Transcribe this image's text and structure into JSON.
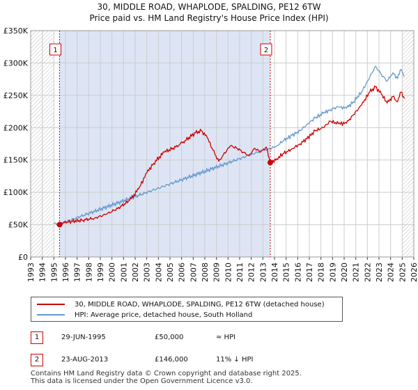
{
  "title": {
    "line1": "30, MIDDLE ROAD, WHAPLODE, SPALDING, PE12 6TW",
    "line2": "Price paid vs. HM Land Registry's House Price Index (HPI)"
  },
  "colors": {
    "property": "#cc0000",
    "hpi": "#6699cc",
    "shade": "#dde5f5",
    "grid": "#cccccc"
  },
  "chart_data": {
    "type": "line",
    "xlim": [
      1993,
      2026
    ],
    "ylim": [
      0,
      350000
    ],
    "y_ticks": [
      {
        "value": 0,
        "label": "£0"
      },
      {
        "value": 50000,
        "label": "£50K"
      },
      {
        "value": 100000,
        "label": "£100K"
      },
      {
        "value": 150000,
        "label": "£150K"
      },
      {
        "value": 200000,
        "label": "£200K"
      },
      {
        "value": 250000,
        "label": "£250K"
      },
      {
        "value": 300000,
        "label": "£300K"
      },
      {
        "value": 350000,
        "label": "£350K"
      }
    ],
    "x_ticks": [
      "1993",
      "1994",
      "1995",
      "1996",
      "1997",
      "1998",
      "1999",
      "2000",
      "2001",
      "2002",
      "2003",
      "2004",
      "2005",
      "2006",
      "2007",
      "2008",
      "2009",
      "2010",
      "2011",
      "2012",
      "2013",
      "2014",
      "2015",
      "2016",
      "2017",
      "2018",
      "2019",
      "2020",
      "2021",
      "2022",
      "2023",
      "2024",
      "2025",
      "2026"
    ],
    "series": [
      {
        "name": "30, MIDDLE ROAD, WHAPLODE, SPALDING, PE12 6TW (detached house)",
        "color": "#cc0000",
        "points": [
          [
            1995.49,
            50000
          ],
          [
            1995.8,
            53000
          ],
          [
            1996.5,
            55000
          ],
          [
            1997.5,
            57000
          ],
          [
            1998.5,
            60000
          ],
          [
            1999.5,
            66000
          ],
          [
            2000.5,
            75000
          ],
          [
            2001.5,
            87000
          ],
          [
            2002.3,
            105000
          ],
          [
            2003.0,
            130000
          ],
          [
            2003.6,
            145000
          ],
          [
            2004.5,
            162000
          ],
          [
            2005.5,
            170000
          ],
          [
            2006.3,
            180000
          ],
          [
            2007.2,
            192000
          ],
          [
            2007.7,
            195000
          ],
          [
            2008.2,
            185000
          ],
          [
            2008.7,
            165000
          ],
          [
            2009.2,
            148000
          ],
          [
            2009.6,
            158000
          ],
          [
            2010.2,
            172000
          ],
          [
            2010.8,
            168000
          ],
          [
            2011.3,
            162000
          ],
          [
            2011.8,
            157000
          ],
          [
            2012.3,
            168000
          ],
          [
            2012.8,
            162000
          ],
          [
            2013.3,
            170000
          ],
          [
            2013.64,
            146000
          ],
          [
            2014.2,
            152000
          ],
          [
            2014.8,
            160000
          ],
          [
            2015.5,
            167000
          ],
          [
            2016.2,
            175000
          ],
          [
            2016.8,
            183000
          ],
          [
            2017.5,
            195000
          ],
          [
            2018.2,
            200000
          ],
          [
            2018.8,
            210000
          ],
          [
            2019.5,
            206000
          ],
          [
            2020.2,
            207000
          ],
          [
            2020.8,
            220000
          ],
          [
            2021.5,
            235000
          ],
          [
            2022.2,
            255000
          ],
          [
            2022.7,
            263000
          ],
          [
            2023.2,
            252000
          ],
          [
            2023.7,
            238000
          ],
          [
            2024.2,
            248000
          ],
          [
            2024.6,
            240000
          ],
          [
            2024.9,
            255000
          ],
          [
            2025.2,
            245000
          ]
        ]
      },
      {
        "name": "HPI: Average price, detached house, South Holland",
        "color": "#6699cc",
        "points": [
          [
            1995.0,
            52000
          ],
          [
            1995.5,
            51000
          ],
          [
            2013.0,
            165000
          ],
          [
            2013.6,
            167000
          ],
          [
            2014.2,
            172000
          ],
          [
            2014.8,
            180000
          ],
          [
            2015.5,
            188000
          ],
          [
            2016.2,
            195000
          ],
          [
            2016.8,
            205000
          ],
          [
            2017.5,
            215000
          ],
          [
            2018.2,
            222000
          ],
          [
            2018.8,
            228000
          ],
          [
            2019.5,
            232000
          ],
          [
            2020.2,
            230000
          ],
          [
            2020.8,
            240000
          ],
          [
            2021.5,
            255000
          ],
          [
            2022.2,
            278000
          ],
          [
            2022.7,
            295000
          ],
          [
            2023.2,
            282000
          ],
          [
            2023.7,
            272000
          ],
          [
            2024.2,
            285000
          ],
          [
            2024.6,
            276000
          ],
          [
            2024.9,
            290000
          ],
          [
            2025.2,
            280000
          ]
        ]
      }
    ],
    "sales": [
      {
        "label": "1",
        "date": "29-JUN-1995",
        "x": 1995.49,
        "price": 50000,
        "price_label": "£50,000",
        "note": "≈ HPI"
      },
      {
        "label": "2",
        "date": "23-AUG-2013",
        "x": 2013.64,
        "price": 146000,
        "price_label": "£146,000",
        "note": "11% ↓ HPI"
      }
    ],
    "shaded_periods": [
      [
        1995.49,
        2013.64
      ]
    ],
    "hatched_periods": [
      [
        1993,
        1995.0
      ],
      [
        2025.0,
        2026
      ]
    ]
  },
  "legend": {
    "property_label": "30, MIDDLE ROAD, WHAPLODE, SPALDING, PE12 6TW (detached house)",
    "hpi_label": "HPI: Average price, detached house, South Holland"
  },
  "footer": {
    "line1": "Contains HM Land Registry data © Crown copyright and database right 2025.",
    "line2": "This data is licensed under the Open Government Licence v3.0."
  }
}
